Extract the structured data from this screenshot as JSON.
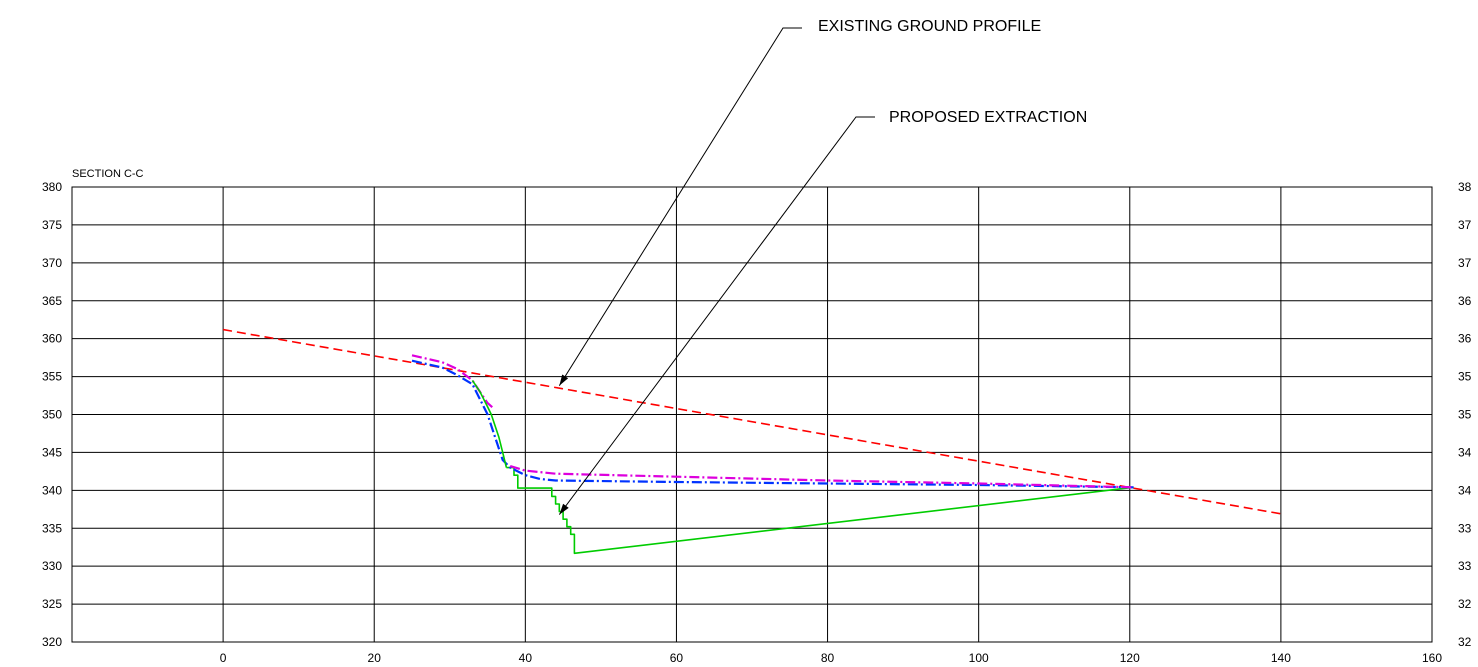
{
  "chart_data": {
    "type": "line",
    "title": "SECTION C-C",
    "xlabel": "",
    "ylabel": "",
    "xlim": [
      -20,
      160
    ],
    "ylim": [
      320,
      380
    ],
    "grid": true,
    "x_ticks": [
      {
        "value": 0,
        "label": "0"
      },
      {
        "value": 20,
        "label": "20"
      },
      {
        "value": 40,
        "label": "40"
      },
      {
        "value": 60,
        "label": "60"
      },
      {
        "value": 80,
        "label": "80"
      },
      {
        "value": 100,
        "label": "100"
      },
      {
        "value": 120,
        "label": "120"
      },
      {
        "value": 140,
        "label": "140"
      },
      {
        "value": 160,
        "label": "160"
      }
    ],
    "y_ticks_left": [
      {
        "value": 380,
        "label": "380"
      },
      {
        "value": 375,
        "label": "375"
      },
      {
        "value": 370,
        "label": "370"
      },
      {
        "value": 365,
        "label": "365"
      },
      {
        "value": 360,
        "label": "360"
      },
      {
        "value": 355,
        "label": "355"
      },
      {
        "value": 350,
        "label": "350"
      },
      {
        "value": 345,
        "label": "345"
      },
      {
        "value": 340,
        "label": "340"
      },
      {
        "value": 335,
        "label": "335"
      },
      {
        "value": 330,
        "label": "330"
      },
      {
        "value": 325,
        "label": "325"
      },
      {
        "value": 320,
        "label": "320"
      }
    ],
    "y_ticks_right": [
      {
        "value": 380,
        "label": "38"
      },
      {
        "value": 375,
        "label": "37"
      },
      {
        "value": 370,
        "label": "37"
      },
      {
        "value": 365,
        "label": "36"
      },
      {
        "value": 360,
        "label": "36"
      },
      {
        "value": 355,
        "label": "35"
      },
      {
        "value": 350,
        "label": "35"
      },
      {
        "value": 345,
        "label": "34"
      },
      {
        "value": 340,
        "label": "34"
      },
      {
        "value": 335,
        "label": "33"
      },
      {
        "value": 330,
        "label": "33"
      },
      {
        "value": 325,
        "label": "32"
      },
      {
        "value": 320,
        "label": "32"
      }
    ],
    "series": [
      {
        "key": "existing-ground",
        "color": "#ff0000",
        "dash": "dashed",
        "x": [
          0,
          140
        ],
        "y": [
          361.2,
          336.9
        ]
      },
      {
        "key": "proposed-extraction",
        "color": "#00cc00",
        "dash": "solid",
        "x": [
          37.5,
          38.5,
          38.5,
          39,
          39,
          43.5,
          43.5,
          44,
          44,
          44.5,
          44.5,
          45,
          45,
          45.5,
          45.5,
          46,
          46,
          46.5,
          46.5,
          120.5
        ],
        "y": [
          343,
          343,
          342,
          342,
          340.3,
          340.3,
          339.2,
          339.2,
          338.2,
          338.2,
          337.2,
          337.2,
          336.2,
          336.2,
          335.2,
          335.2,
          334.2,
          334.2,
          331.7,
          340.4
        ]
      },
      {
        "key": "blue-profile",
        "color": "#0033ff",
        "dash": "dashdot",
        "x": [
          25,
          29,
          31,
          33,
          34,
          35,
          36,
          37,
          38,
          40,
          42,
          44,
          60,
          80,
          100,
          120.5
        ],
        "y": [
          357.1,
          356.2,
          355.2,
          354,
          352,
          350,
          347,
          344,
          343,
          342,
          341.5,
          341.3,
          341.1,
          340.9,
          340.7,
          340.4
        ]
      },
      {
        "key": "magenta-profile",
        "color": "#dd00dd",
        "dash": "dashdot",
        "x": [
          25,
          29,
          31,
          33,
          34,
          35,
          35.8
        ],
        "y": [
          357.8,
          356.9,
          356,
          354.5,
          353,
          351.5,
          350.8
        ]
      },
      {
        "key": "magenta-profile-lower",
        "color": "#dd00dd",
        "dash": "dashdot",
        "x": [
          38,
          40,
          44,
          60,
          80,
          100,
          120.5
        ],
        "y": [
          343.2,
          342.6,
          342.2,
          341.8,
          341.3,
          340.9,
          340.4
        ]
      },
      {
        "key": "green-slope",
        "color": "#00cc00",
        "dash": "solid",
        "x": [
          33,
          34,
          35,
          35.5,
          36,
          36.5,
          37,
          37.5
        ],
        "y": [
          354.5,
          353,
          351,
          350,
          348.5,
          347,
          345,
          343
        ]
      }
    ],
    "annotations": [
      {
        "key": "existing",
        "text": "EXISTING GROUND PROFILE",
        "target_x": 44.5,
        "target_y": 353.8
      },
      {
        "key": "proposed",
        "text": "PROPOSED EXTRACTION",
        "target_x": 44.5,
        "target_y": 336.8
      }
    ]
  }
}
